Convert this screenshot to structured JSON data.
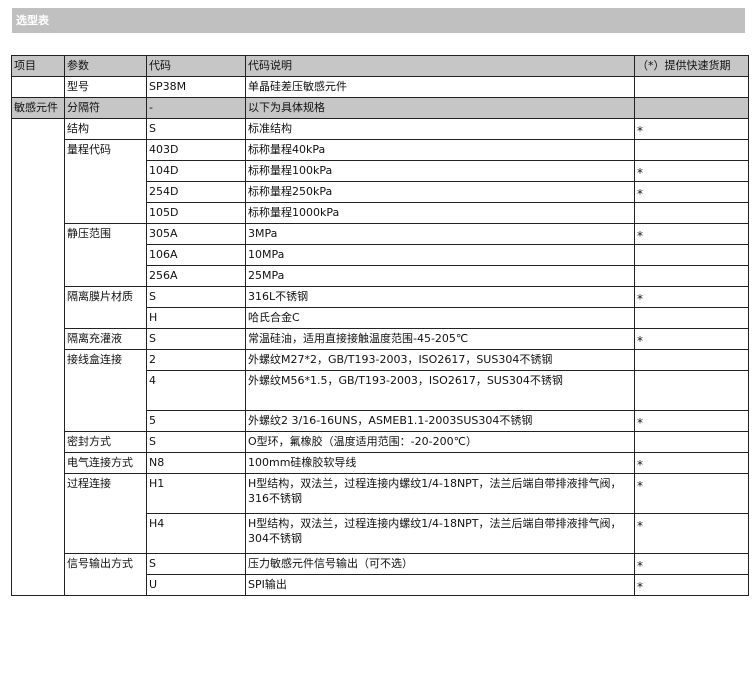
{
  "title": "选型表",
  "header": [
    "项目",
    "参数",
    "代码",
    "代码说明",
    "（*）提供快速货期"
  ],
  "model_row": {
    "item": "",
    "param": "型号",
    "code": "SP38M",
    "desc": "单晶硅差压敏感元件",
    "star": ""
  },
  "separator_row": {
    "item": "敏感元件",
    "param": "分隔符",
    "code": "-",
    "desc": "以下为具体规格",
    "star": ""
  },
  "groups": [
    {
      "param": "结构",
      "rows": [
        {
          "code": "S",
          "desc": "标准结构",
          "star": "*"
        }
      ]
    },
    {
      "param": "量程代码",
      "rows": [
        {
          "code": "403D",
          "desc": "标称量程40kPa",
          "star": ""
        },
        {
          "code": "104D",
          "desc": "标称量程100kPa",
          "star": "*"
        },
        {
          "code": "254D",
          "desc": "标称量程250kPa",
          "star": "*"
        },
        {
          "code": "105D",
          "desc": "标称量程1000kPa",
          "star": ""
        }
      ]
    },
    {
      "param": "静压范围",
      "rows": [
        {
          "code": "305A",
          "desc": "3MPa",
          "star": "*"
        },
        {
          "code": "106A",
          "desc": "10MPa",
          "star": ""
        },
        {
          "code": "256A",
          "desc": "25MPa",
          "star": ""
        }
      ]
    },
    {
      "param": "隔离膜片材质",
      "rows": [
        {
          "code": "S",
          "desc": "316L不锈钢",
          "star": "*"
        },
        {
          "code": "H",
          "desc": "哈氏合金C",
          "star": ""
        }
      ]
    },
    {
      "param": "隔离充灌液",
      "rows": [
        {
          "code": "S",
          "desc": "常温硅油，适用直接接触温度范围-45-205℃",
          "star": "*"
        }
      ]
    },
    {
      "param": "接线盒连接",
      "rows": [
        {
          "code": "2",
          "desc": "外螺纹M27*2，GB/T193-2003，ISO2617，SUS304不锈钢",
          "star": ""
        },
        {
          "code": "4",
          "desc": "外螺纹M56*1.5，GB/T193-2003，ISO2617，SUS304不锈钢",
          "star": ""
        },
        {
          "code": "5",
          "desc": "外螺纹2 3/16-16UNS，ASMEB1.1-2003SUS304不锈钢",
          "star": "*"
        }
      ]
    },
    {
      "param": "密封方式",
      "rows": [
        {
          "code": "S",
          "desc": "O型环，氟橡胶（温度适用范围：-20-200℃）",
          "star": ""
        }
      ]
    },
    {
      "param": "电气连接方式",
      "rows": [
        {
          "code": "N8",
          "desc": "100mm硅橡胶软导线",
          "star": "*"
        }
      ]
    },
    {
      "param": "过程连接",
      "rows": [
        {
          "code": "H1",
          "desc": "H型结构，双法兰，过程连接内螺纹1/4-18NPT，法兰后端自带排液排气阀，316不锈钢",
          "star": "*"
        },
        {
          "code": "H4",
          "desc": "H型结构，双法兰，过程连接内螺纹1/4-18NPT，法兰后端自带排液排气阀，304不锈钢",
          "star": "*"
        }
      ]
    },
    {
      "param": "信号输出方式",
      "rows": [
        {
          "code": "S",
          "desc": "压力敏感元件信号输出（可不选）",
          "star": "*"
        },
        {
          "code": "U",
          "desc": "SPI输出",
          "star": "*"
        }
      ]
    }
  ],
  "colors": {
    "title_bar": "#c0c0c0",
    "gray_row": "#c6c6c6",
    "border": "#222222"
  }
}
